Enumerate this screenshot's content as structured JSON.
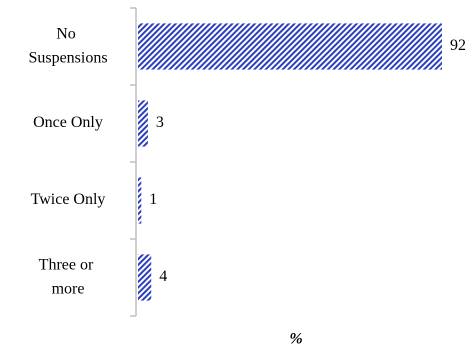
{
  "chart_data": {
    "type": "bar",
    "orientation": "horizontal",
    "categories": [
      "No Suspensions",
      "Once Only",
      "Twice Only",
      "Three or more"
    ],
    "values": [
      92,
      3,
      1,
      4
    ],
    "color": "#2b3fbf",
    "xlim": [
      0,
      92
    ],
    "x_label": "%"
  }
}
